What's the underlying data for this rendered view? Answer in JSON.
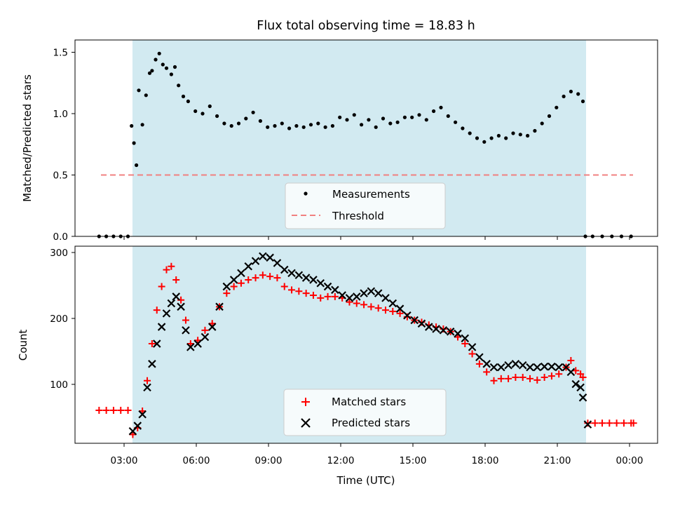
{
  "title": "Flux total observing time = 18.83 h",
  "colors": {
    "observing_band": "#add8e6",
    "measurements": "#000000",
    "threshold": "#f08080",
    "matched": "#ff0000",
    "predicted": "#000000"
  },
  "chart_data": [
    {
      "type": "scatter",
      "title": "Flux total observing time = 18.83 h",
      "xlabel": "",
      "ylabel": "Matched/Predicted stars",
      "xlim_hours": [
        1.0,
        25.2
      ],
      "ylim": [
        0,
        1.6
      ],
      "yticks": [
        0.0,
        0.5,
        1.0,
        1.5
      ],
      "ytick_labels": [
        "0.0",
        "0.5",
        "1.0",
        "1.5"
      ],
      "observing_window_hours": [
        3.35,
        22.2
      ],
      "legend": {
        "position": "lower center",
        "entries": [
          "Measurements",
          "Threshold"
        ]
      },
      "threshold": {
        "name": "Threshold",
        "y": 0.5,
        "x_hours": [
          2.0,
          24.1
        ]
      },
      "series": [
        {
          "name": "Measurements",
          "points": [
            [
              2.0,
              0
            ],
            [
              2.3,
              0
            ],
            [
              2.6,
              0
            ],
            [
              2.9,
              0
            ],
            [
              3.2,
              0
            ],
            [
              3.35,
              0.9
            ],
            [
              3.45,
              0.76
            ],
            [
              3.55,
              0.58
            ],
            [
              3.65,
              1.19
            ],
            [
              3.8,
              0.91
            ],
            [
              3.95,
              1.15
            ],
            [
              4.1,
              1.33
            ],
            [
              4.2,
              1.35
            ],
            [
              4.35,
              1.44
            ],
            [
              4.5,
              1.49
            ],
            [
              4.65,
              1.4
            ],
            [
              4.8,
              1.37
            ],
            [
              5.0,
              1.32
            ],
            [
              5.15,
              1.38
            ],
            [
              5.3,
              1.23
            ],
            [
              5.5,
              1.14
            ],
            [
              5.7,
              1.1
            ],
            [
              6.0,
              1.02
            ],
            [
              6.3,
              1.0
            ],
            [
              6.6,
              1.06
            ],
            [
              6.9,
              0.98
            ],
            [
              7.2,
              0.92
            ],
            [
              7.5,
              0.9
            ],
            [
              7.8,
              0.92
            ],
            [
              8.1,
              0.96
            ],
            [
              8.4,
              1.01
            ],
            [
              8.7,
              0.94
            ],
            [
              9.0,
              0.89
            ],
            [
              9.3,
              0.9
            ],
            [
              9.6,
              0.92
            ],
            [
              9.9,
              0.88
            ],
            [
              10.2,
              0.9
            ],
            [
              10.5,
              0.89
            ],
            [
              10.8,
              0.91
            ],
            [
              11.1,
              0.92
            ],
            [
              11.4,
              0.89
            ],
            [
              11.7,
              0.9
            ],
            [
              12.0,
              0.97
            ],
            [
              12.3,
              0.95
            ],
            [
              12.6,
              0.99
            ],
            [
              12.9,
              0.91
            ],
            [
              13.2,
              0.95
            ],
            [
              13.5,
              0.89
            ],
            [
              13.8,
              0.96
            ],
            [
              14.1,
              0.92
            ],
            [
              14.4,
              0.93
            ],
            [
              14.7,
              0.97
            ],
            [
              15.0,
              0.97
            ],
            [
              15.3,
              0.99
            ],
            [
              15.6,
              0.95
            ],
            [
              15.9,
              1.02
            ],
            [
              16.2,
              1.05
            ],
            [
              16.5,
              0.98
            ],
            [
              16.8,
              0.93
            ],
            [
              17.1,
              0.88
            ],
            [
              17.4,
              0.84
            ],
            [
              17.7,
              0.8
            ],
            [
              18.0,
              0.77
            ],
            [
              18.3,
              0.8
            ],
            [
              18.6,
              0.82
            ],
            [
              18.9,
              0.8
            ],
            [
              19.2,
              0.84
            ],
            [
              19.5,
              0.83
            ],
            [
              19.8,
              0.82
            ],
            [
              20.1,
              0.86
            ],
            [
              20.4,
              0.92
            ],
            [
              20.7,
              0.98
            ],
            [
              21.0,
              1.05
            ],
            [
              21.3,
              1.14
            ],
            [
              21.6,
              1.18
            ],
            [
              21.9,
              1.16
            ],
            [
              22.1,
              1.1
            ],
            [
              22.2,
              0
            ],
            [
              22.5,
              0
            ],
            [
              22.9,
              0
            ],
            [
              23.3,
              0
            ],
            [
              23.7,
              0
            ],
            [
              24.1,
              0
            ]
          ]
        }
      ]
    },
    {
      "type": "scatter",
      "title": "",
      "xlabel": "Time (UTC)",
      "ylabel": "Count",
      "xlim_hours": [
        1.0,
        25.2
      ],
      "ylim": [
        12,
        305
      ],
      "yticks": [
        100,
        200,
        300
      ],
      "ytick_labels": [
        "100",
        "200",
        "300"
      ],
      "xticks_hours": [
        3,
        6,
        9,
        12,
        15,
        18,
        21,
        24
      ],
      "xtick_labels": [
        "03:00",
        "06:00",
        "09:00",
        "12:00",
        "15:00",
        "18:00",
        "21:00",
        "00:00"
      ],
      "observing_window_hours": [
        3.35,
        22.2
      ],
      "legend": {
        "position": "lower center",
        "entries": [
          "Matched stars",
          "Predicted stars"
        ]
      },
      "series": [
        {
          "name": "Matched stars",
          "points": [
            [
              2.0,
              61
            ],
            [
              2.3,
              61
            ],
            [
              2.6,
              61
            ],
            [
              2.9,
              61
            ],
            [
              3.2,
              61
            ],
            [
              3.4,
              25
            ],
            [
              3.6,
              35
            ],
            [
              3.8,
              60
            ],
            [
              4.0,
              105
            ],
            [
              4.2,
              160
            ],
            [
              4.4,
              210
            ],
            [
              4.6,
              245
            ],
            [
              4.8,
              270
            ],
            [
              5.0,
              275
            ],
            [
              5.2,
              255
            ],
            [
              5.4,
              225
            ],
            [
              5.6,
              195
            ],
            [
              5.8,
              160
            ],
            [
              6.1,
              165
            ],
            [
              6.4,
              180
            ],
            [
              6.7,
              190
            ],
            [
              7.0,
              215
            ],
            [
              7.3,
              235
            ],
            [
              7.6,
              245
            ],
            [
              7.9,
              250
            ],
            [
              8.2,
              255
            ],
            [
              8.5,
              258
            ],
            [
              8.8,
              262
            ],
            [
              9.1,
              260
            ],
            [
              9.4,
              258
            ],
            [
              9.7,
              245
            ],
            [
              10.0,
              240
            ],
            [
              10.3,
              238
            ],
            [
              10.6,
              235
            ],
            [
              10.9,
              232
            ],
            [
              11.2,
              228
            ],
            [
              11.5,
              230
            ],
            [
              11.8,
              230
            ],
            [
              12.1,
              228
            ],
            [
              12.4,
              222
            ],
            [
              12.7,
              220
            ],
            [
              13.0,
              218
            ],
            [
              13.3,
              215
            ],
            [
              13.6,
              213
            ],
            [
              13.9,
              210
            ],
            [
              14.2,
              208
            ],
            [
              14.5,
              205
            ],
            [
              14.8,
              200
            ],
            [
              15.1,
              195
            ],
            [
              15.4,
              192
            ],
            [
              15.7,
              188
            ],
            [
              16.0,
              185
            ],
            [
              16.3,
              182
            ],
            [
              16.6,
              178
            ],
            [
              16.9,
              170
            ],
            [
              17.2,
              160
            ],
            [
              17.5,
              145
            ],
            [
              17.8,
              130
            ],
            [
              18.1,
              118
            ],
            [
              18.4,
              105
            ],
            [
              18.7,
              108
            ],
            [
              19.0,
              108
            ],
            [
              19.3,
              110
            ],
            [
              19.6,
              110
            ],
            [
              19.9,
              108
            ],
            [
              20.2,
              106
            ],
            [
              20.5,
              110
            ],
            [
              20.8,
              112
            ],
            [
              21.1,
              115
            ],
            [
              21.4,
              125
            ],
            [
              21.6,
              135
            ],
            [
              21.8,
              120
            ],
            [
              22.0,
              115
            ],
            [
              22.1,
              110
            ],
            [
              22.3,
              42
            ],
            [
              22.6,
              42
            ],
            [
              22.9,
              42
            ],
            [
              23.2,
              42
            ],
            [
              23.5,
              42
            ],
            [
              23.8,
              42
            ],
            [
              24.1,
              42
            ],
            [
              24.2,
              42
            ]
          ]
        },
        {
          "name": "Predicted stars",
          "points": [
            [
              3.4,
              30
            ],
            [
              3.6,
              38
            ],
            [
              3.8,
              55
            ],
            [
              4.0,
              95
            ],
            [
              4.2,
              130
            ],
            [
              4.4,
              160
            ],
            [
              4.6,
              185
            ],
            [
              4.8,
              205
            ],
            [
              5.0,
              220
            ],
            [
              5.2,
              230
            ],
            [
              5.4,
              215
            ],
            [
              5.6,
              180
            ],
            [
              5.8,
              155
            ],
            [
              6.1,
              160
            ],
            [
              6.4,
              170
            ],
            [
              6.7,
              185
            ],
            [
              7.0,
              215
            ],
            [
              7.3,
              245
            ],
            [
              7.6,
              255
            ],
            [
              7.9,
              265
            ],
            [
              8.2,
              275
            ],
            [
              8.5,
              283
            ],
            [
              8.8,
              290
            ],
            [
              9.1,
              288
            ],
            [
              9.4,
              280
            ],
            [
              9.7,
              270
            ],
            [
              10.0,
              265
            ],
            [
              10.3,
              262
            ],
            [
              10.6,
              258
            ],
            [
              10.9,
              255
            ],
            [
              11.2,
              250
            ],
            [
              11.5,
              245
            ],
            [
              11.8,
              240
            ],
            [
              12.1,
              232
            ],
            [
              12.4,
              228
            ],
            [
              12.7,
              230
            ],
            [
              13.0,
              235
            ],
            [
              13.3,
              238
            ],
            [
              13.6,
              235
            ],
            [
              13.9,
              228
            ],
            [
              14.2,
              220
            ],
            [
              14.5,
              212
            ],
            [
              14.8,
              202
            ],
            [
              15.1,
              195
            ],
            [
              15.4,
              190
            ],
            [
              15.7,
              185
            ],
            [
              16.0,
              182
            ],
            [
              16.3,
              180
            ],
            [
              16.6,
              178
            ],
            [
              16.9,
              175
            ],
            [
              17.2,
              168
            ],
            [
              17.5,
              155
            ],
            [
              17.8,
              140
            ],
            [
              18.1,
              130
            ],
            [
              18.4,
              125
            ],
            [
              18.7,
              125
            ],
            [
              19.0,
              128
            ],
            [
              19.3,
              130
            ],
            [
              19.6,
              128
            ],
            [
              19.9,
              125
            ],
            [
              20.2,
              125
            ],
            [
              20.5,
              126
            ],
            [
              20.8,
              126
            ],
            [
              21.1,
              125
            ],
            [
              21.4,
              125
            ],
            [
              21.6,
              118
            ],
            [
              21.8,
              100
            ],
            [
              22.0,
              95
            ],
            [
              22.1,
              80
            ],
            [
              22.3,
              40
            ]
          ]
        }
      ]
    }
  ]
}
